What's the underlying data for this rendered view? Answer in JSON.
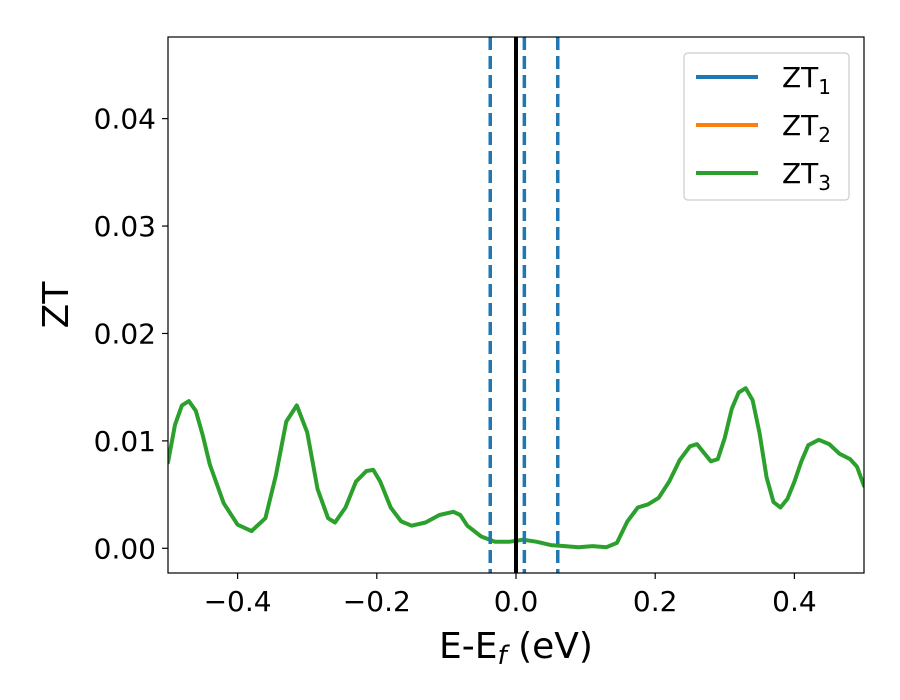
{
  "chart_data": {
    "type": "line",
    "xlabel": {
      "main": "E-E",
      "sub": "f",
      "unit": " (eV)"
    },
    "ylabel": "ZT",
    "xlim": [
      -0.5,
      0.5
    ],
    "ylim": [
      -0.0023,
      0.0476
    ],
    "xticks": [
      -0.4,
      -0.2,
      0.0,
      0.2,
      0.4
    ],
    "xtick_labels": [
      "−0.4",
      "−0.2",
      "0.0",
      "0.2",
      "0.4"
    ],
    "yticks": [
      0.0,
      0.01,
      0.02,
      0.03,
      0.04
    ],
    "ytick_labels": [
      "0.00",
      "0.01",
      "0.02",
      "0.03",
      "0.04"
    ],
    "grid": false,
    "legend": {
      "position": "top-right",
      "labels": [
        {
          "text": "ZT",
          "sub": "1"
        },
        {
          "text": "ZT",
          "sub": "2"
        },
        {
          "text": "ZT",
          "sub": "3"
        }
      ]
    },
    "series": [
      {
        "name": "ZT1",
        "color": "#1f77b4",
        "x": [],
        "y": []
      },
      {
        "name": "ZT2",
        "color": "#ff7f0e",
        "x": [],
        "y": []
      },
      {
        "name": "ZT3",
        "color": "#2ca02c",
        "x": [
          -0.5,
          -0.49,
          -0.48,
          -0.47,
          -0.46,
          -0.45,
          -0.44,
          -0.42,
          -0.4,
          -0.38,
          -0.36,
          -0.345,
          -0.33,
          -0.315,
          -0.3,
          -0.285,
          -0.27,
          -0.26,
          -0.245,
          -0.23,
          -0.215,
          -0.205,
          -0.195,
          -0.18,
          -0.165,
          -0.15,
          -0.13,
          -0.11,
          -0.09,
          -0.08,
          -0.07,
          -0.05,
          -0.03,
          -0.01,
          0.0,
          0.01,
          0.03,
          0.05,
          0.07,
          0.09,
          0.11,
          0.13,
          0.145,
          0.16,
          0.175,
          0.19,
          0.205,
          0.22,
          0.235,
          0.25,
          0.26,
          0.27,
          0.28,
          0.29,
          0.3,
          0.31,
          0.32,
          0.33,
          0.34,
          0.35,
          0.36,
          0.37,
          0.38,
          0.39,
          0.4,
          0.41,
          0.42,
          0.435,
          0.45,
          0.465,
          0.48,
          0.49,
          0.5
        ],
        "y": [
          0.008,
          0.0115,
          0.0133,
          0.0137,
          0.0128,
          0.0105,
          0.0078,
          0.0042,
          0.0022,
          0.0016,
          0.0028,
          0.0068,
          0.0118,
          0.0133,
          0.0108,
          0.0055,
          0.0028,
          0.0024,
          0.0038,
          0.0062,
          0.0072,
          0.0073,
          0.0062,
          0.0038,
          0.0025,
          0.0021,
          0.0024,
          0.0031,
          0.0034,
          0.0031,
          0.0021,
          0.0011,
          0.0006,
          0.0006,
          0.0007,
          0.0008,
          0.0006,
          0.0003,
          0.0002,
          0.0001,
          0.0002,
          0.0001,
          0.0005,
          0.0025,
          0.0038,
          0.0041,
          0.0047,
          0.0062,
          0.0082,
          0.0095,
          0.0097,
          0.0089,
          0.0081,
          0.0083,
          0.0103,
          0.013,
          0.0145,
          0.0149,
          0.0138,
          0.0107,
          0.0066,
          0.0043,
          0.0038,
          0.0046,
          0.0062,
          0.0081,
          0.0096,
          0.0101,
          0.0097,
          0.0088,
          0.0083,
          0.0076,
          0.0058
        ]
      }
    ],
    "vlines": [
      {
        "x": 0.0,
        "style": "solid",
        "color": "#000000"
      },
      {
        "x": -0.037,
        "style": "dashed",
        "color": "#1f77b4"
      },
      {
        "x": 0.012,
        "style": "dashed",
        "color": "#1f77b4"
      },
      {
        "x": 0.06,
        "style": "dashed",
        "color": "#1f77b4"
      }
    ]
  }
}
